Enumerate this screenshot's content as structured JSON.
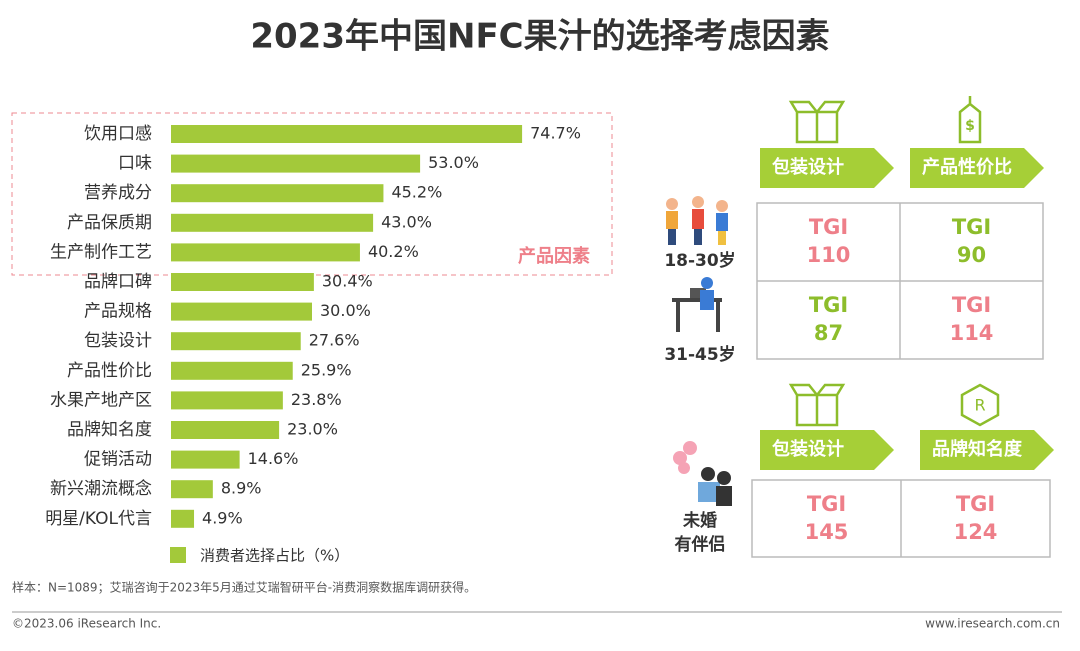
{
  "chart_data": {
    "type": "hbar",
    "title": "2023年中国NFC果汁的选择考虑因素",
    "categories": [
      "饮用口感",
      "口味",
      "营养成分",
      "产品保质期",
      "生产制作工艺",
      "品牌口碑",
      "产品规格",
      "包装设计",
      "产品性价比",
      "水果产地产区",
      "品牌知名度",
      "促销活动",
      "新兴潮流概念",
      "明星/KOL代言"
    ],
    "series": [
      {
        "name": "消费者选择占比（%）",
        "color": "#a3c93a",
        "values": [
          74.7,
          53.0,
          45.2,
          43.0,
          40.2,
          30.4,
          30.0,
          27.6,
          25.9,
          23.8,
          23.0,
          14.6,
          8.9,
          4.9
        ],
        "value_labels": [
          "74.7%",
          "53.0%",
          "45.2%",
          "43.0%",
          "40.2%",
          "30.4%",
          "30.0%",
          "27.6%",
          "25.9%",
          "23.8%",
          "23.0%",
          "14.6%",
          "8.9%",
          "4.9%"
        ]
      }
    ],
    "xlim": [
      0,
      100
    ],
    "annotation": "产品因素"
  },
  "tgi": {
    "groups": [
      {
        "headers": [
          "包装设计",
          "产品性价比"
        ],
        "rows": [
          {
            "label": [
              "18-30岁"
            ],
            "cells": [
              {
                "label": "TGI",
                "value": 110,
                "color": "#ee7f89"
              },
              {
                "label": "TGI",
                "value": 90,
                "color": "#8dbd2b"
              }
            ]
          },
          {
            "label": [
              "31-45岁"
            ],
            "cells": [
              {
                "label": "TGI",
                "value": 87,
                "color": "#8dbd2b"
              },
              {
                "label": "TGI",
                "value": 114,
                "color": "#ee7f89"
              }
            ]
          }
        ]
      },
      {
        "headers": [
          "包装设计",
          "品牌知名度"
        ],
        "rows": [
          {
            "label": [
              "未婚",
              "有伴侣"
            ],
            "cells": [
              {
                "label": "TGI",
                "value": 145,
                "color": "#ee7f89"
              },
              {
                "label": "TGI",
                "value": 124,
                "color": "#ee7f89"
              }
            ]
          }
        ]
      }
    ]
  },
  "source": "样本：N=1089；艾瑞咨询于2023年5月通过艾瑞智研平台-消费洞察数据库调研获得。",
  "footer": {
    "left": "©2023.06 iResearch Inc.",
    "right": "www.iresearch.com.cn"
  }
}
